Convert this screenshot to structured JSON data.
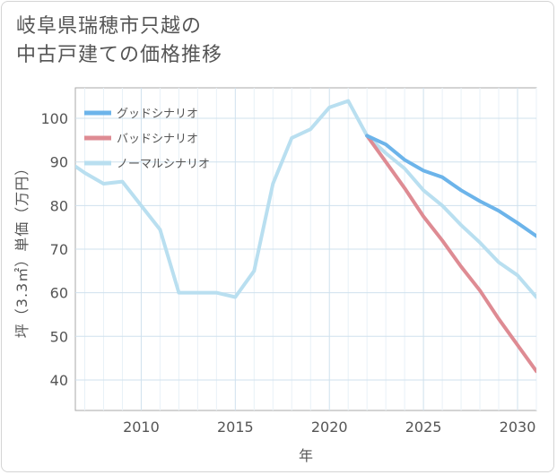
{
  "chart_data": {
    "type": "line",
    "title_lines": [
      "岐阜県瑞穂市只越の",
      "中古戸建ての価格推移"
    ],
    "xlabel": "年",
    "ylabel": "坪（3.3㎡）単価（万円）",
    "xlim": [
      2006.5,
      2031
    ],
    "ylim": [
      33,
      107
    ],
    "x_ticks": [
      2010,
      2015,
      2020,
      2025,
      2030
    ],
    "y_ticks": [
      40,
      50,
      60,
      70,
      80,
      90,
      100
    ],
    "legend_position": "top-left",
    "series": [
      {
        "name": "グッドシナリオ",
        "color": "#6cb4ea",
        "x": [
          2022,
          2023,
          2024,
          2025,
          2026,
          2027,
          2028,
          2029,
          2030,
          2031
        ],
        "values": [
          96,
          94,
          90.5,
          88,
          86.5,
          83.5,
          81,
          78.8,
          76,
          73
        ]
      },
      {
        "name": "バッドシナリオ",
        "color": "#de8b93",
        "x": [
          2022,
          2023,
          2024,
          2025,
          2026,
          2027,
          2028,
          2029,
          2030,
          2031
        ],
        "values": [
          96,
          90,
          84,
          77.5,
          72,
          66,
          60.5,
          54,
          48,
          42
        ]
      },
      {
        "name": "ノーマルシナリオ",
        "color": "#b9dff0",
        "x": [
          2006.5,
          2007,
          2008,
          2009,
          2010,
          2011,
          2012,
          2013,
          2014,
          2015,
          2016,
          2017,
          2018,
          2019,
          2020,
          2021,
          2022,
          2023,
          2024,
          2025,
          2026,
          2027,
          2028,
          2029,
          2030,
          2031
        ],
        "values": [
          89,
          87.5,
          85,
          85.5,
          80,
          74.5,
          60,
          60,
          60,
          59,
          65,
          85,
          95.5,
          97.5,
          102.5,
          104,
          96,
          92,
          88.5,
          83.5,
          80,
          75.5,
          71.5,
          67,
          64,
          59
        ]
      }
    ]
  }
}
